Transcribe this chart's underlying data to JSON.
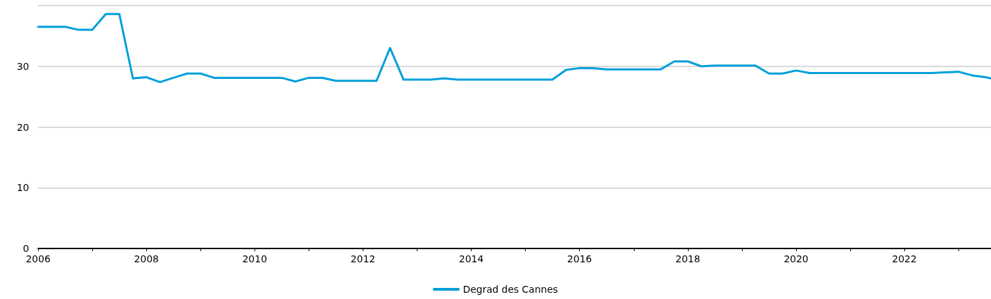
{
  "chart_data": {
    "type": "line",
    "x": [
      2006,
      2006.25,
      2006.5,
      2006.75,
      2007,
      2007.25,
      2007.5,
      2007.75,
      2008,
      2008.25,
      2008.5,
      2008.75,
      2009,
      2009.25,
      2009.5,
      2009.75,
      2010,
      2010.25,
      2010.5,
      2010.75,
      2011,
      2011.25,
      2011.5,
      2011.75,
      2012,
      2012.25,
      2012.5,
      2012.75,
      2013,
      2013.25,
      2013.5,
      2013.75,
      2014,
      2014.25,
      2014.5,
      2014.75,
      2015,
      2015.25,
      2015.5,
      2015.75,
      2016,
      2016.25,
      2016.5,
      2016.75,
      2017,
      2017.25,
      2017.5,
      2017.75,
      2018,
      2018.25,
      2018.5,
      2018.75,
      2019,
      2019.25,
      2019.5,
      2019.75,
      2020,
      2020.25,
      2020.5,
      2020.75,
      2021,
      2021.25,
      2021.5,
      2021.75,
      2022,
      2022.25,
      2022.5,
      2022.75,
      2023,
      2023.25,
      2023.5,
      2023.6
    ],
    "series": [
      {
        "name": "Degrad des Cannes",
        "color": "#009fda",
        "values": [
          36.5,
          36.5,
          36.5,
          36.0,
          36.0,
          38.6,
          38.6,
          28.0,
          28.2,
          27.4,
          28.1,
          28.8,
          28.8,
          28.1,
          28.1,
          28.1,
          28.1,
          28.1,
          28.1,
          27.5,
          28.1,
          28.1,
          27.6,
          27.6,
          27.6,
          27.6,
          33.0,
          27.8,
          27.8,
          27.8,
          28.0,
          27.8,
          27.8,
          27.8,
          27.8,
          27.8,
          27.8,
          27.8,
          27.8,
          29.4,
          29.7,
          29.7,
          29.5,
          29.5,
          29.5,
          29.5,
          29.5,
          30.8,
          30.8,
          30.0,
          30.1,
          30.1,
          30.1,
          30.1,
          28.8,
          28.8,
          29.3,
          28.9,
          28.9,
          28.9,
          28.9,
          28.9,
          28.9,
          28.9,
          28.9,
          28.9,
          28.9,
          29.0,
          29.1,
          28.5,
          28.2,
          28.0
        ]
      }
    ],
    "xlim": [
      2006,
      2023.6
    ],
    "xticks": [
      2006,
      {
        "value": 2007,
        "label": null
      },
      2008,
      {
        "value": 2009,
        "label": null
      },
      2010,
      {
        "value": 2011,
        "label": null
      },
      2012,
      {
        "value": 2013,
        "label": null
      },
      2014,
      {
        "value": 2015,
        "label": null
      },
      2016,
      {
        "value": 2017,
        "label": null
      },
      2018,
      {
        "value": 2019,
        "label": null
      },
      2020,
      {
        "value": 2021,
        "label": null
      },
      2022,
      {
        "value": 2023,
        "label": null
      }
    ],
    "ylim": [
      0,
      40
    ],
    "yticks": [
      0,
      10,
      20,
      30,
      {
        "value": 40,
        "label": null
      }
    ],
    "grid": "y",
    "legend": "bottom",
    "marker": "none",
    "line_style": "solid"
  }
}
